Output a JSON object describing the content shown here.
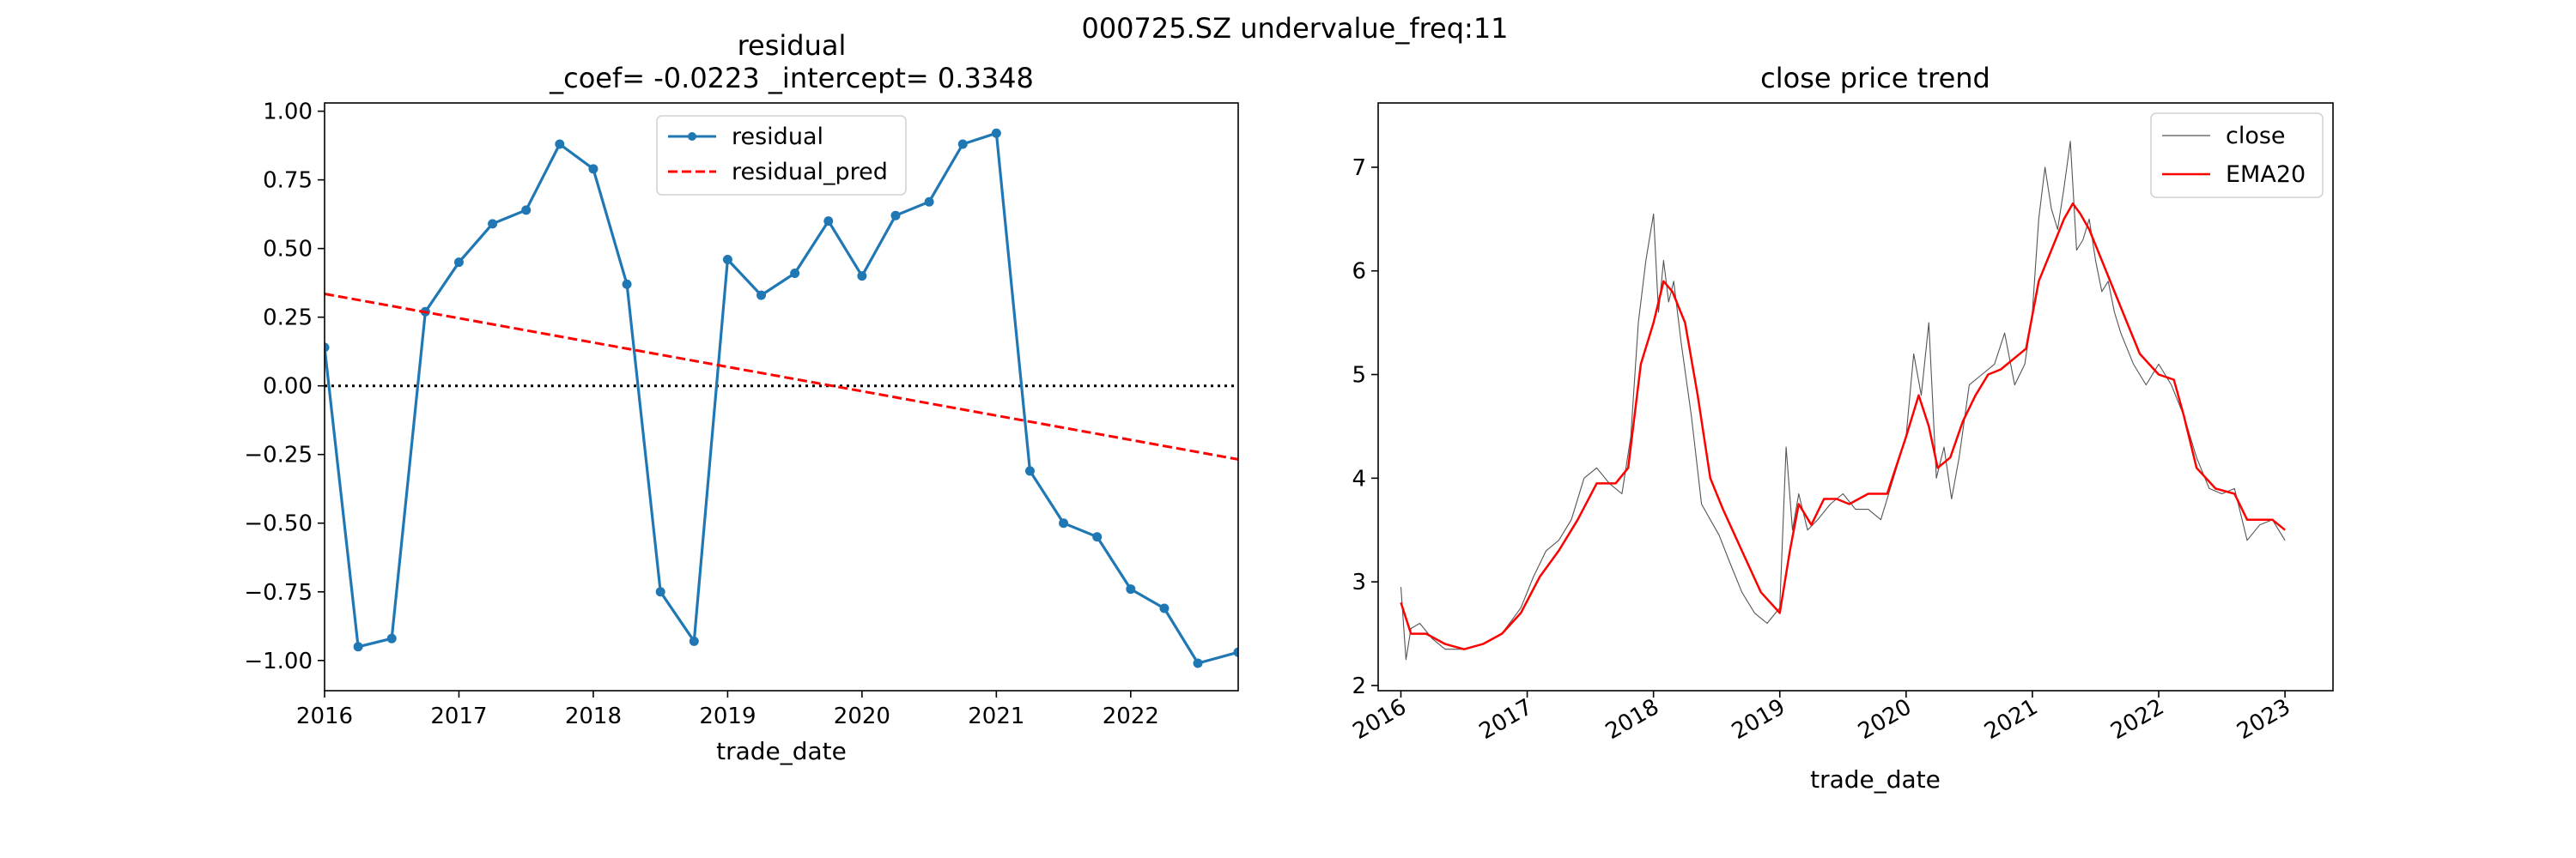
{
  "figure": {
    "suptitle": "000725.SZ undervalue_freq:11"
  },
  "chart_data": [
    {
      "type": "line",
      "title": "residual",
      "subtitle": "_coef= -0.0223   _intercept= 0.3348",
      "xlabel": "trade_date",
      "ylabel": "",
      "xlim": [
        2016.0,
        2022.8
      ],
      "ylim": [
        -1.11,
        1.03
      ],
      "x_ticks": [
        2016,
        2017,
        2018,
        2019,
        2020,
        2021,
        2022
      ],
      "y_ticks": [
        -1.0,
        -0.75,
        -0.5,
        -0.25,
        0.0,
        0.25,
        0.5,
        0.75,
        1.0
      ],
      "y_tick_labels": [
        "−1.00",
        "−0.75",
        "−0.50",
        "−0.25",
        "0.00",
        "0.25",
        "0.50",
        "0.75",
        "1.00"
      ],
      "grid": false,
      "legend": "upper-center",
      "reference_line": {
        "y": 0.0,
        "style": "dotted",
        "color": "#000000"
      },
      "series": [
        {
          "name": "residual",
          "color": "#1f77b4",
          "style": "solid-markers",
          "x": [
            2016.0,
            2016.25,
            2016.5,
            2016.75,
            2017.0,
            2017.25,
            2017.5,
            2017.75,
            2018.0,
            2018.25,
            2018.5,
            2018.75,
            2019.0,
            2019.25,
            2019.5,
            2019.75,
            2020.0,
            2020.25,
            2020.5,
            2020.75,
            2021.0,
            2021.25,
            2021.5,
            2021.75,
            2022.0,
            2022.25,
            2022.5,
            2022.8
          ],
          "y": [
            0.14,
            -0.95,
            -0.92,
            0.27,
            0.45,
            0.59,
            0.64,
            0.88,
            0.79,
            0.37,
            -0.75,
            -0.93,
            0.46,
            0.33,
            0.41,
            0.6,
            0.4,
            0.62,
            0.67,
            0.88,
            0.92,
            -0.31,
            -0.5,
            -0.55,
            -0.74,
            -0.81,
            -1.01,
            -0.97
          ]
        },
        {
          "name": "residual_pred",
          "color": "#ff0000",
          "style": "dashed",
          "x": [
            2016.0,
            2022.8
          ],
          "y": [
            0.3348,
            -0.2676
          ]
        }
      ]
    },
    {
      "type": "line",
      "title": "close price trend",
      "xlabel": "trade_date",
      "ylabel": "",
      "xlim": [
        2015.82,
        2023.38
      ],
      "ylim": [
        1.95,
        7.62
      ],
      "x_ticks": [
        2016,
        2017,
        2018,
        2019,
        2020,
        2021,
        2022,
        2023
      ],
      "y_ticks": [
        2,
        3,
        4,
        5,
        6,
        7
      ],
      "grid": false,
      "legend": "top-right",
      "series": [
        {
          "name": "close",
          "color": "#555555",
          "style": "thin",
          "x": [
            2016.0,
            2016.04,
            2016.08,
            2016.15,
            2016.25,
            2016.35,
            2016.5,
            2016.65,
            2016.8,
            2016.95,
            2017.05,
            2017.15,
            2017.25,
            2017.35,
            2017.45,
            2017.55,
            2017.65,
            2017.75,
            2017.82,
            2017.88,
            2017.94,
            2018.0,
            2018.04,
            2018.08,
            2018.12,
            2018.16,
            2018.22,
            2018.3,
            2018.38,
            2018.45,
            2018.52,
            2018.6,
            2018.7,
            2018.8,
            2018.9,
            2019.0,
            2019.05,
            2019.1,
            2019.15,
            2019.22,
            2019.3,
            2019.4,
            2019.5,
            2019.6,
            2019.7,
            2019.8,
            2019.9,
            2020.0,
            2020.06,
            2020.12,
            2020.18,
            2020.24,
            2020.3,
            2020.36,
            2020.42,
            2020.5,
            2020.6,
            2020.7,
            2020.78,
            2020.86,
            2020.94,
            2021.0,
            2021.05,
            2021.1,
            2021.15,
            2021.2,
            2021.25,
            2021.3,
            2021.35,
            2021.4,
            2021.45,
            2021.5,
            2021.55,
            2021.6,
            2021.65,
            2021.7,
            2021.8,
            2021.9,
            2022.0,
            2022.1,
            2022.2,
            2022.3,
            2022.4,
            2022.5,
            2022.6,
            2022.7,
            2022.8,
            2022.9,
            2023.0
          ],
          "y": [
            2.95,
            2.25,
            2.55,
            2.6,
            2.45,
            2.35,
            2.35,
            2.4,
            2.5,
            2.75,
            3.05,
            3.3,
            3.4,
            3.6,
            4.0,
            4.1,
            3.95,
            3.85,
            4.4,
            5.5,
            6.1,
            6.55,
            5.6,
            6.1,
            5.7,
            5.9,
            5.3,
            4.6,
            3.75,
            3.6,
            3.45,
            3.2,
            2.9,
            2.7,
            2.6,
            2.75,
            4.3,
            3.5,
            3.85,
            3.5,
            3.6,
            3.75,
            3.85,
            3.7,
            3.7,
            3.6,
            4.0,
            4.4,
            5.2,
            4.8,
            5.5,
            4.0,
            4.3,
            3.8,
            4.2,
            4.9,
            5.0,
            5.1,
            5.4,
            4.9,
            5.1,
            5.6,
            6.5,
            7.0,
            6.6,
            6.4,
            6.8,
            7.25,
            6.2,
            6.3,
            6.5,
            6.1,
            5.8,
            5.9,
            5.6,
            5.4,
            5.1,
            4.9,
            5.1,
            4.9,
            4.6,
            4.2,
            3.9,
            3.85,
            3.9,
            3.4,
            3.55,
            3.6,
            3.4
          ]
        },
        {
          "name": "EMA20",
          "color": "#ff0000",
          "style": "solid",
          "x": [
            2016.0,
            2016.08,
            2016.2,
            2016.35,
            2016.5,
            2016.65,
            2016.8,
            2016.95,
            2017.1,
            2017.25,
            2017.4,
            2017.55,
            2017.7,
            2017.8,
            2017.9,
            2018.0,
            2018.08,
            2018.15,
            2018.25,
            2018.35,
            2018.45,
            2018.55,
            2018.7,
            2018.85,
            2019.0,
            2019.08,
            2019.15,
            2019.25,
            2019.35,
            2019.45,
            2019.55,
            2019.7,
            2019.85,
            2020.0,
            2020.1,
            2020.18,
            2020.25,
            2020.35,
            2020.45,
            2020.55,
            2020.65,
            2020.75,
            2020.85,
            2020.95,
            2021.05,
            2021.15,
            2021.25,
            2021.32,
            2021.38,
            2021.45,
            2021.55,
            2021.65,
            2021.75,
            2021.85,
            2022.0,
            2022.12,
            2022.2,
            2022.3,
            2022.45,
            2022.6,
            2022.7,
            2022.8,
            2022.9,
            2023.0
          ],
          "y": [
            2.8,
            2.5,
            2.5,
            2.4,
            2.35,
            2.4,
            2.5,
            2.7,
            3.05,
            3.3,
            3.6,
            3.95,
            3.95,
            4.1,
            5.1,
            5.5,
            5.9,
            5.8,
            5.5,
            4.8,
            4.0,
            3.7,
            3.3,
            2.9,
            2.7,
            3.3,
            3.75,
            3.55,
            3.8,
            3.8,
            3.75,
            3.85,
            3.85,
            4.4,
            4.8,
            4.5,
            4.1,
            4.2,
            4.55,
            4.8,
            5.0,
            5.05,
            5.15,
            5.25,
            5.9,
            6.2,
            6.5,
            6.65,
            6.55,
            6.4,
            6.1,
            5.8,
            5.5,
            5.2,
            5.0,
            4.95,
            4.6,
            4.1,
            3.9,
            3.85,
            3.6,
            3.6,
            3.6,
            3.5
          ]
        }
      ]
    }
  ]
}
